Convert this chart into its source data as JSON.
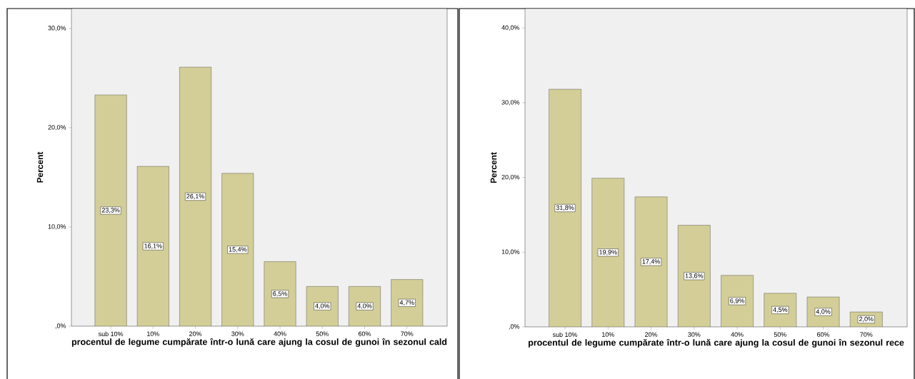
{
  "chart_data": [
    {
      "type": "bar",
      "xlabel": "procentul de legume cumpărate într-o lună care ajung la cosul de gunoi în sezonul cald",
      "ylabel": "Percent",
      "categories": [
        "sub 10%",
        "10%",
        "20%",
        "30%",
        "40%",
        "50%",
        "60%",
        "70%"
      ],
      "values": [
        23.3,
        16.1,
        26.1,
        15.4,
        6.5,
        4.0,
        4.0,
        4.7
      ],
      "value_labels": [
        "23,3%",
        "16,1%",
        "26,1%",
        "15,4%",
        "6,5%",
        "4,0%",
        "4,0%",
        "4,7%"
      ],
      "color": "#d3ce97",
      "ylim": [
        0,
        32
      ],
      "yticks": [
        {
          "value": 0,
          "label": ",0%"
        },
        {
          "value": 10,
          "label": "10,0%"
        },
        {
          "value": 20,
          "label": "20,0%"
        },
        {
          "value": 30,
          "label": "30,0%"
        }
      ]
    },
    {
      "type": "bar",
      "xlabel": "procentul de legume cumpărate într-o lună care ajung la cosul de gunoi în sezonul rece",
      "ylabel": "Percent",
      "categories": [
        "sub 10%",
        "10%",
        "20%",
        "30%",
        "40%",
        "50%",
        "60%",
        "70%"
      ],
      "values": [
        31.8,
        19.9,
        17.4,
        13.6,
        6.9,
        4.5,
        4.0,
        2.0
      ],
      "value_labels": [
        "31,8%",
        "19,9%",
        "17,4%",
        "13,6%",
        "6,9%",
        "4,5%",
        "4,0%",
        "2,0%"
      ],
      "color": "#d3ce97",
      "ylim": [
        0,
        42.6
      ],
      "yticks": [
        {
          "value": 0,
          "label": ",0%"
        },
        {
          "value": 10,
          "label": "10,0%"
        },
        {
          "value": 20,
          "label": "20,0%"
        },
        {
          "value": 30,
          "label": "30,0%"
        },
        {
          "value": 40,
          "label": "40,0%"
        }
      ]
    }
  ]
}
